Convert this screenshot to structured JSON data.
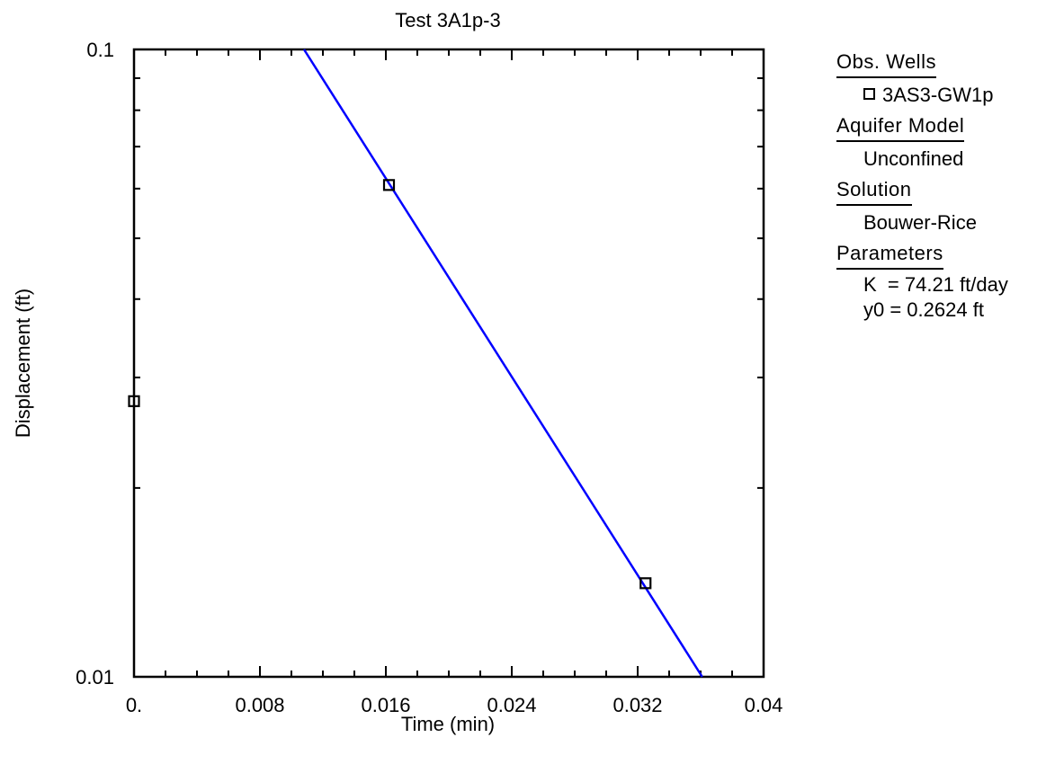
{
  "chart_data": {
    "type": "scatter",
    "title": "Test 3A1p-3",
    "xlabel": "Time (min)",
    "ylabel": "Displacement (ft)",
    "xlim": [
      0,
      0.04
    ],
    "ylim": [
      0.01,
      0.1
    ],
    "y_scale": "log",
    "x_ticks": [
      0,
      0.008,
      0.016,
      0.024,
      0.032,
      0.04
    ],
    "x_tick_labels": [
      "0.",
      "0.008",
      "0.016",
      "0.024",
      "0.032",
      "0.04"
    ],
    "y_tick_labels": [
      {
        "value": 0.1,
        "label": "0.1"
      },
      {
        "value": 0.01,
        "label": "0.01"
      }
    ],
    "grid": false,
    "series": [
      {
        "name": "3AS3-GW1p",
        "kind": "points",
        "marker": "open-square",
        "color": "#000000",
        "x": [
          0.0,
          0.0162,
          0.0325
        ],
        "y": [
          0.0275,
          0.0608,
          0.0141
        ]
      },
      {
        "kind": "line",
        "color": "#0000ff",
        "x": [
          0.0108,
          0.0361
        ],
        "y": [
          0.1,
          0.01
        ]
      }
    ]
  },
  "legend": {
    "obs_header": "Obs. Wells",
    "obs_well": "3AS3-GW1p",
    "model_header": "Aquifer Model",
    "model_value": "Unconfined",
    "solution_header": "Solution",
    "solution_value": "Bouwer-Rice",
    "params_header": "Parameters",
    "param_k": "K  = 74.21 ft/day",
    "param_y0": "y0 = 0.2624 ft"
  }
}
